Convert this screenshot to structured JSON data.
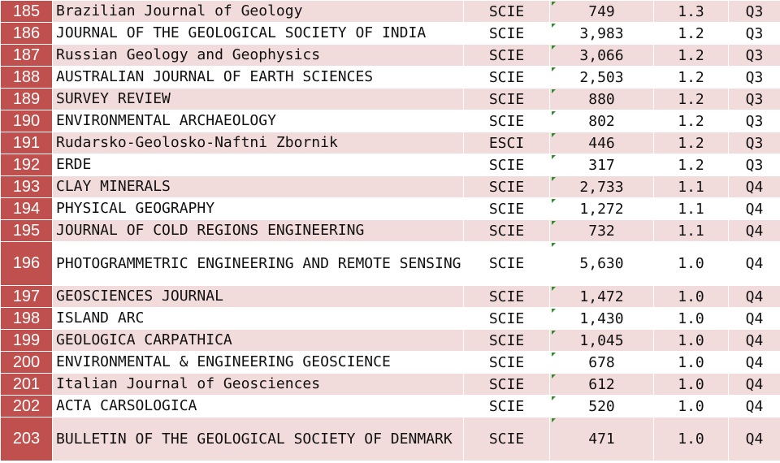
{
  "rows": [
    {
      "rank": "185",
      "name": "Brazilian Journal of Geology",
      "index": "SCIE",
      "citations": "749",
      "if": "1.3",
      "quartile": "Q3"
    },
    {
      "rank": "186",
      "name": "JOURNAL OF THE GEOLOGICAL SOCIETY OF INDIA",
      "index": "SCIE",
      "citations": "3,983",
      "if": "1.2",
      "quartile": "Q3"
    },
    {
      "rank": "187",
      "name": "Russian Geology and Geophysics",
      "index": "SCIE",
      "citations": "3,066",
      "if": "1.2",
      "quartile": "Q3"
    },
    {
      "rank": "188",
      "name": "AUSTRALIAN JOURNAL OF EARTH SCIENCES",
      "index": "SCIE",
      "citations": "2,503",
      "if": "1.2",
      "quartile": "Q3"
    },
    {
      "rank": "189",
      "name": "SURVEY REVIEW",
      "index": "SCIE",
      "citations": "880",
      "if": "1.2",
      "quartile": "Q3"
    },
    {
      "rank": "190",
      "name": "ENVIRONMENTAL ARCHAEOLOGY",
      "index": "SCIE",
      "citations": "802",
      "if": "1.2",
      "quartile": "Q3"
    },
    {
      "rank": "191",
      "name": "Rudarsko-Geolosko-Naftni Zbornik",
      "index": "ESCI",
      "citations": "446",
      "if": "1.2",
      "quartile": "Q3"
    },
    {
      "rank": "192",
      "name": "ERDE",
      "index": "SCIE",
      "citations": "317",
      "if": "1.2",
      "quartile": "Q3"
    },
    {
      "rank": "193",
      "name": "CLAY MINERALS",
      "index": "SCIE",
      "citations": "2,733",
      "if": "1.1",
      "quartile": "Q4"
    },
    {
      "rank": "194",
      "name": "PHYSICAL GEOGRAPHY",
      "index": "SCIE",
      "citations": "1,272",
      "if": "1.1",
      "quartile": "Q4"
    },
    {
      "rank": "195",
      "name": "JOURNAL OF COLD REGIONS ENGINEERING",
      "index": "SCIE",
      "citations": "732",
      "if": "1.1",
      "quartile": "Q4"
    },
    {
      "rank": "196",
      "name": "PHOTOGRAMMETRIC ENGINEERING AND REMOTE SENSING",
      "index": "SCIE",
      "citations": "5,630",
      "if": "1.0",
      "quartile": "Q4"
    },
    {
      "rank": "197",
      "name": "GEOSCIENCES JOURNAL",
      "index": "SCIE",
      "citations": "1,472",
      "if": "1.0",
      "quartile": "Q4"
    },
    {
      "rank": "198",
      "name": "ISLAND ARC",
      "index": "SCIE",
      "citations": "1,430",
      "if": "1.0",
      "quartile": "Q4"
    },
    {
      "rank": "199",
      "name": "GEOLOGICA CARPATHICA",
      "index": "SCIE",
      "citations": "1,045",
      "if": "1.0",
      "quartile": "Q4"
    },
    {
      "rank": "200",
      "name": "ENVIRONMENTAL & ENGINEERING GEOSCIENCE",
      "index": "SCIE",
      "citations": "678",
      "if": "1.0",
      "quartile": "Q4"
    },
    {
      "rank": "201",
      "name": "Italian Journal of Geosciences",
      "index": "SCIE",
      "citations": "612",
      "if": "1.0",
      "quartile": "Q4"
    },
    {
      "rank": "202",
      "name": "ACTA CARSOLOGICA",
      "index": "SCIE",
      "citations": "520",
      "if": "1.0",
      "quartile": "Q4"
    },
    {
      "rank": "203",
      "name": "BULLETIN OF THE GEOLOGICAL SOCIETY OF DENMARK",
      "index": "SCIE",
      "citations": "471",
      "if": "1.0",
      "quartile": "Q4"
    }
  ]
}
